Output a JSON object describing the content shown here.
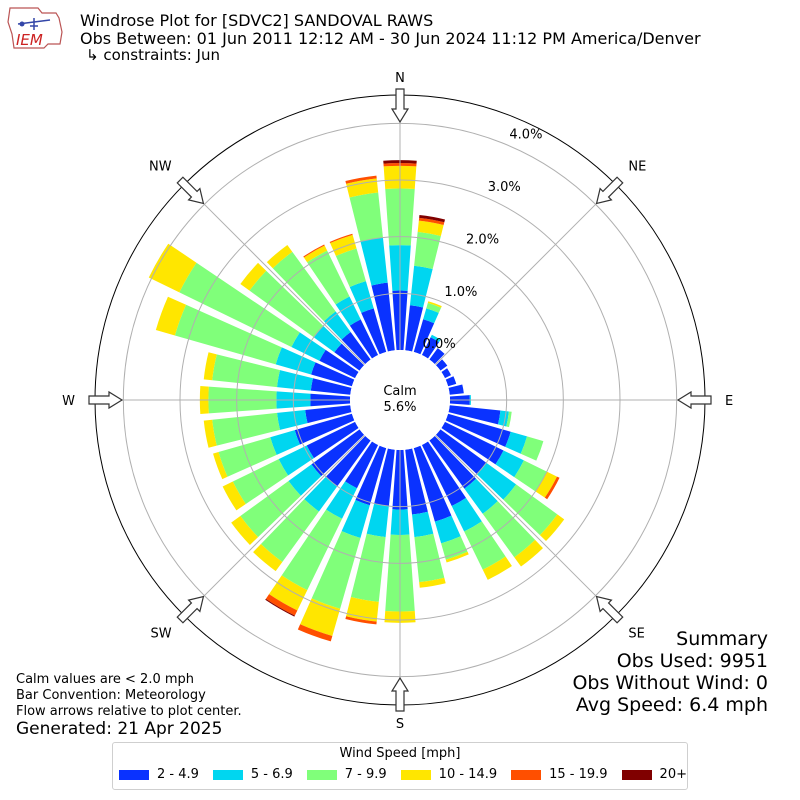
{
  "header": {
    "logo_text": "IEM",
    "title": "Windrose Plot for [SDVC2] SANDOVAL RAWS",
    "subtitle": "Obs Between: 01 Jun 2011 12:12 AM - 30 Jun 2024 11:12 PM America/Denver",
    "constraints": "↳ constraints: Jun"
  },
  "footer": {
    "notes": [
      "Calm values are < 2.0 mph",
      "Bar Convention: Meteorology",
      "Flow arrows relative to plot center."
    ],
    "generated": "Generated: 21 Apr 2025"
  },
  "summary": {
    "title": "Summary",
    "obs_used": "Obs Used: 9951",
    "obs_without_wind": "Obs Without Wind: 0",
    "avg_speed": "Avg Speed: 6.4 mph"
  },
  "chart_data": {
    "type": "windrose",
    "calm_label": "Calm",
    "calm_value": "5.6%",
    "radial_unit": "percent",
    "radial_ticks": [
      "0.0%",
      "1.0%",
      "2.0%",
      "3.0%",
      "4.0%"
    ],
    "radial_tick_values": [
      0,
      1,
      2,
      3,
      4
    ],
    "radial_max": 4.5,
    "directions": [
      {
        "label": "N",
        "angle": 0
      },
      {
        "label": "NE",
        "angle": 45
      },
      {
        "label": "E",
        "angle": 90
      },
      {
        "label": "SE",
        "angle": 135
      },
      {
        "label": "S",
        "angle": 180
      },
      {
        "label": "SW",
        "angle": 225
      },
      {
        "label": "W",
        "angle": 270
      },
      {
        "label": "NW",
        "angle": 315
      }
    ],
    "legend_title": "Wind Speed [mph]",
    "bins": [
      {
        "label": "2 - 4.9",
        "color": "#0a32ff"
      },
      {
        "label": "5 - 6.9",
        "color": "#00d6f0"
      },
      {
        "label": "7 - 9.9",
        "color": "#80ff7a"
      },
      {
        "label": "10 - 14.9",
        "color": "#ffe600"
      },
      {
        "label": "15 - 19.9",
        "color": "#ff4f00"
      },
      {
        "label": "20+",
        "color": "#800000"
      }
    ],
    "sector_angles": [
      0,
      10,
      20,
      30,
      40,
      50,
      60,
      70,
      80,
      90,
      100,
      110,
      120,
      130,
      140,
      150,
      160,
      170,
      180,
      190,
      200,
      210,
      220,
      230,
      240,
      250,
      260,
      270,
      280,
      290,
      300,
      310,
      320,
      330,
      340,
      350
    ],
    "sector_values": [
      [
        1.05,
        0.8,
        1.0,
        0.4,
        0.05,
        0.05
      ],
      [
        0.8,
        0.7,
        0.6,
        0.2,
        0.05,
        0.05
      ],
      [
        0.6,
        0.2,
        0.1,
        0.03,
        0,
        0
      ],
      [
        0.35,
        0.05,
        0,
        0,
        0,
        0
      ],
      [
        0.25,
        0,
        0,
        0,
        0,
        0
      ],
      [
        0.15,
        0,
        0,
        0,
        0,
        0
      ],
      [
        0.12,
        0,
        0,
        0,
        0,
        0
      ],
      [
        0.15,
        0,
        0,
        0,
        0,
        0
      ],
      [
        0.25,
        0,
        0,
        0,
        0,
        0
      ],
      [
        0.35,
        0.02,
        0,
        0,
        0,
        0
      ],
      [
        0.9,
        0.15,
        0.05,
        0,
        0,
        0
      ],
      [
        1.15,
        0.3,
        0.3,
        0,
        0,
        0
      ],
      [
        1.15,
        0.4,
        0.45,
        0.2,
        0.05,
        0
      ],
      [
        1.0,
        0.65,
        0.9,
        0.15,
        0,
        0
      ],
      [
        1.05,
        0.55,
        0.95,
        0.2,
        0,
        0
      ],
      [
        1.2,
        0.5,
        0.75,
        0.2,
        0,
        0
      ],
      [
        1.35,
        0.4,
        0.3,
        0.05,
        0,
        0
      ],
      [
        1.15,
        0.4,
        0.8,
        0.1,
        0,
        0
      ],
      [
        1.05,
        0.45,
        1.35,
        0.2,
        0,
        0
      ],
      [
        1.0,
        0.55,
        1.15,
        0.35,
        0.05,
        0
      ],
      [
        1.05,
        0.6,
        1.3,
        0.5,
        0.1,
        0
      ],
      [
        0.85,
        0.6,
        1.4,
        0.4,
        0.1,
        0.02
      ],
      [
        1.0,
        0.55,
        1.1,
        0.2,
        0,
        0
      ],
      [
        1.05,
        0.5,
        1.05,
        0.2,
        0,
        0
      ],
      [
        0.95,
        0.55,
        0.9,
        0.2,
        0,
        0
      ],
      [
        1.05,
        0.45,
        0.95,
        0.1,
        0,
        0
      ],
      [
        0.8,
        0.5,
        1.15,
        0.15,
        0,
        0
      ],
      [
        0.7,
        0.6,
        1.2,
        0.15,
        0,
        0
      ],
      [
        0.7,
        0.6,
        1.15,
        0.15,
        0,
        0
      ],
      [
        0.75,
        0.65,
        1.85,
        0.35,
        0,
        0
      ],
      [
        0.7,
        0.55,
        2.2,
        0.6,
        0,
        0
      ],
      [
        0.55,
        0.45,
        1.4,
        0.2,
        0,
        0
      ],
      [
        0.6,
        0.45,
        1.3,
        0.15,
        0,
        0
      ],
      [
        0.7,
        0.45,
        0.9,
        0.1,
        0.02,
        0
      ],
      [
        0.8,
        0.5,
        0.6,
        0.25,
        0.02,
        0
      ],
      [
        1.2,
        0.8,
        0.8,
        0.25,
        0.05,
        0
      ]
    ]
  }
}
